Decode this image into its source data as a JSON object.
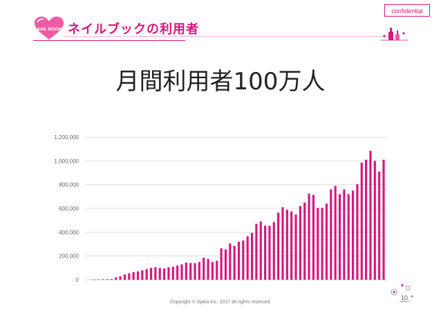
{
  "header": {
    "badge": "confidential",
    "logo_text": "NAIL BOOK",
    "title": "ネイルブックの利用者"
  },
  "main": {
    "heading": "月間利用者100万人"
  },
  "footer": {
    "copyright": "Copyright © Spika Inc. 2017 all rights reserved.",
    "page_number": "10"
  },
  "colors": {
    "bar": "#d6177d",
    "accent": "#d6177d",
    "grid": "#d9d9d9"
  },
  "chart_data": {
    "type": "bar",
    "title": "",
    "xlabel": "",
    "ylabel": "",
    "ylim": [
      0,
      1200000
    ],
    "yticks": [
      0,
      200000,
      400000,
      600000,
      800000,
      1000000,
      1200000
    ],
    "ytick_labels": [
      "0",
      "200,000",
      "400,000",
      "600,000",
      "800,000",
      "1,000,000",
      "1,200,000"
    ],
    "grid": true,
    "values": [
      2000,
      3000,
      4000,
      5000,
      6000,
      20000,
      30000,
      45000,
      55000,
      65000,
      70000,
      80000,
      90000,
      100000,
      105000,
      100000,
      95000,
      105000,
      110000,
      120000,
      130000,
      145000,
      140000,
      140000,
      150000,
      185000,
      175000,
      150000,
      160000,
      265000,
      255000,
      305000,
      285000,
      320000,
      330000,
      365000,
      395000,
      470000,
      490000,
      455000,
      455000,
      485000,
      565000,
      610000,
      590000,
      575000,
      550000,
      620000,
      650000,
      725000,
      715000,
      605000,
      605000,
      640000,
      760000,
      790000,
      720000,
      760000,
      720000,
      750000,
      805000,
      985000,
      1010000,
      1085000,
      1000000,
      910000,
      1010000
    ]
  }
}
